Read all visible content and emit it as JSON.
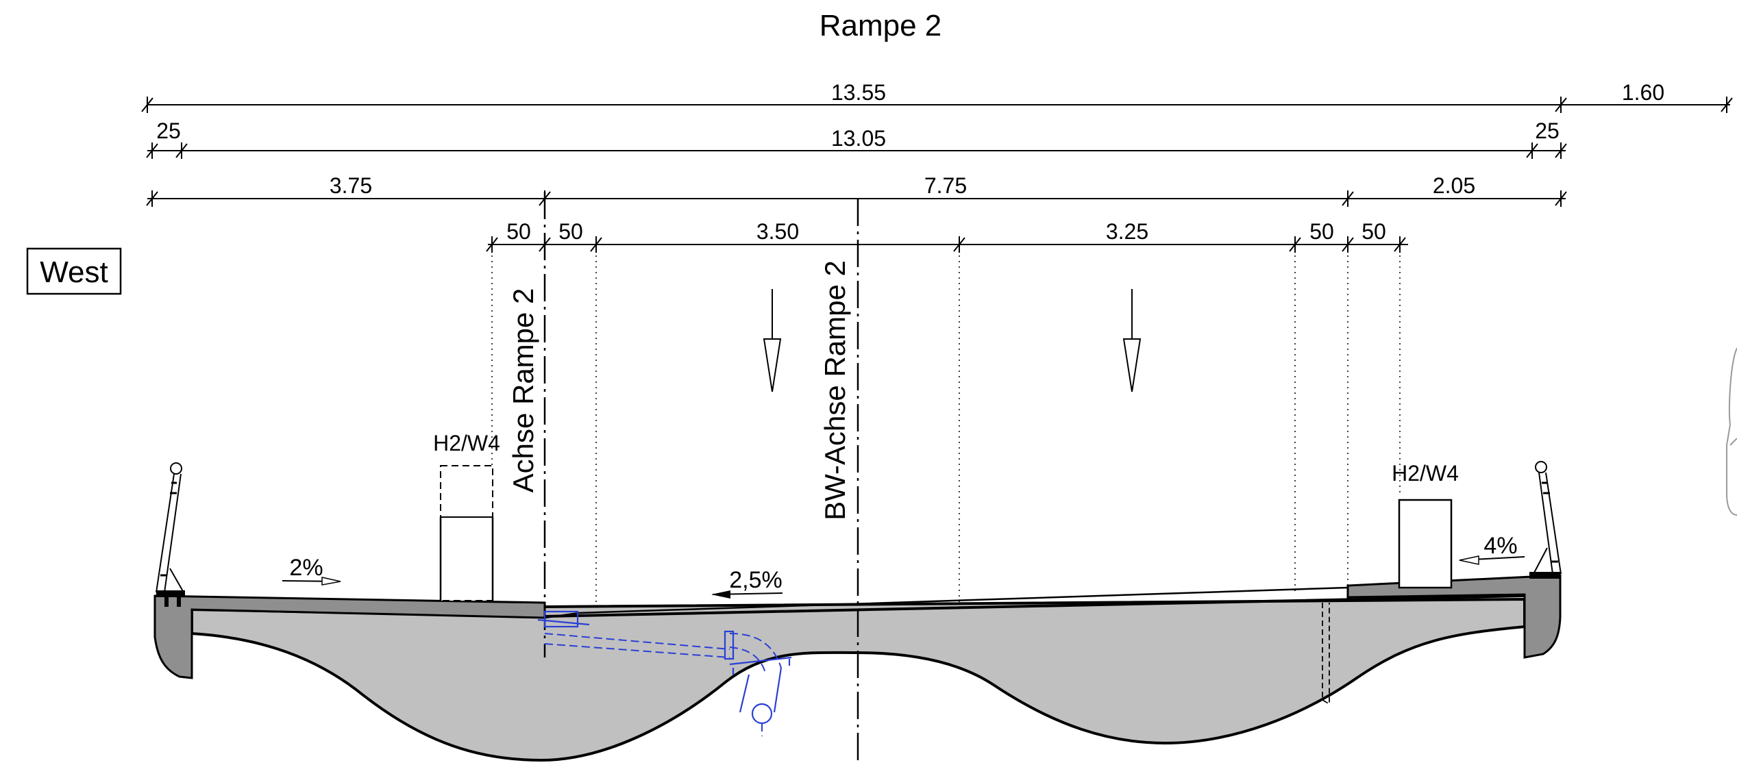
{
  "title": "Rampe 2",
  "side_label": "West",
  "dimensions": {
    "row1": [
      "13.55",
      "1.60"
    ],
    "row2": [
      "25",
      "13.05",
      "25"
    ],
    "row3": [
      "3.75",
      "7.75",
      "2.05"
    ],
    "row4": [
      "50",
      "50",
      "3.50",
      "3.25",
      "50",
      "50"
    ]
  },
  "axes": {
    "left": "Achse Rampe 2",
    "center": "BW-Achse Rampe 2"
  },
  "barriers": {
    "left": "H2/W4",
    "right": "H2/W4"
  },
  "slopes": {
    "left": "2%",
    "middle": "2,5%",
    "right": "4%"
  },
  "colors": {
    "concrete_fill": "#c0c0c0",
    "cap_fill": "#8f8f8f",
    "drainage": "#2a3fd6"
  }
}
